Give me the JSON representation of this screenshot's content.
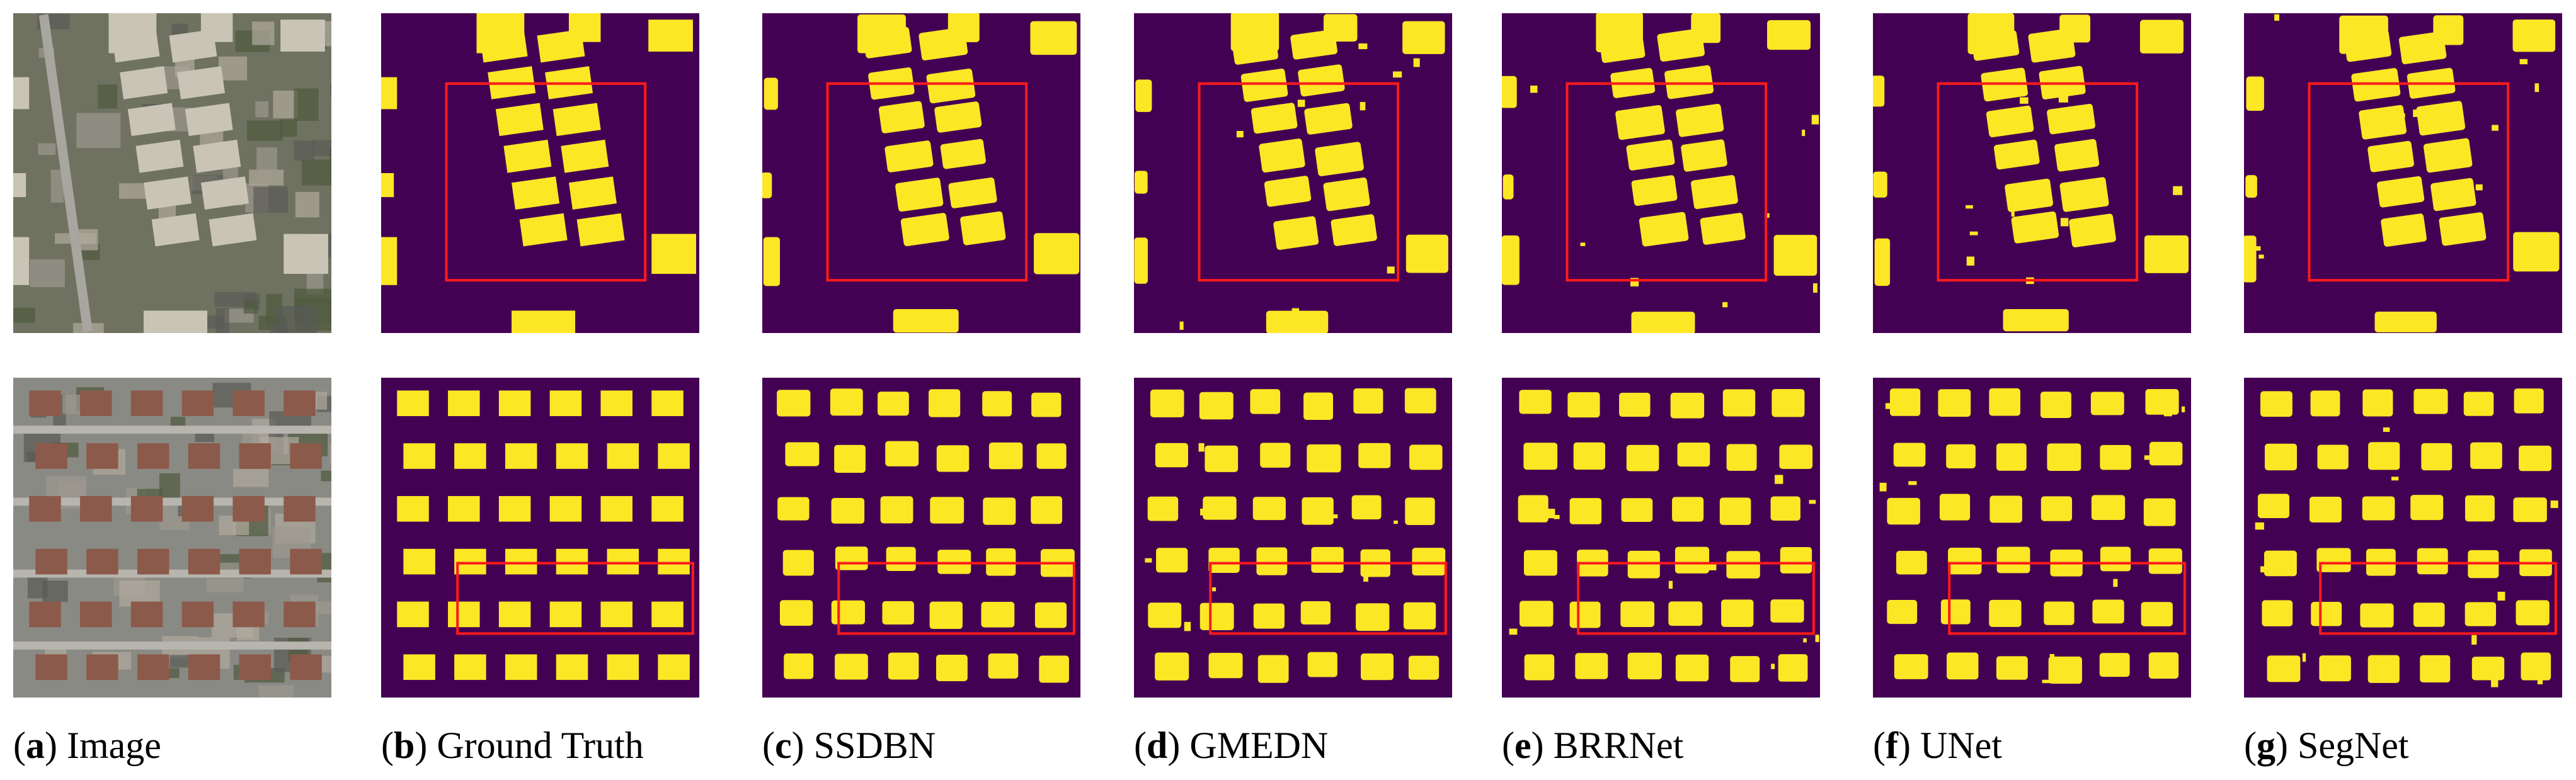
{
  "captions": [
    {
      "open": "(",
      "letter": "a",
      "text": ") Image"
    },
    {
      "open": "(",
      "letter": "b",
      "text": ") Ground Truth"
    },
    {
      "open": "(",
      "letter": "c",
      "text": ") SSDBN"
    },
    {
      "open": "(",
      "letter": "d",
      "text": ") GMEDN"
    },
    {
      "open": "(",
      "letter": "e",
      "text": ") BRRNet"
    },
    {
      "open": "(",
      "letter": "f",
      "text": ") UNet"
    },
    {
      "open": "(",
      "letter": "g",
      "text": ") SegNet"
    }
  ]
}
